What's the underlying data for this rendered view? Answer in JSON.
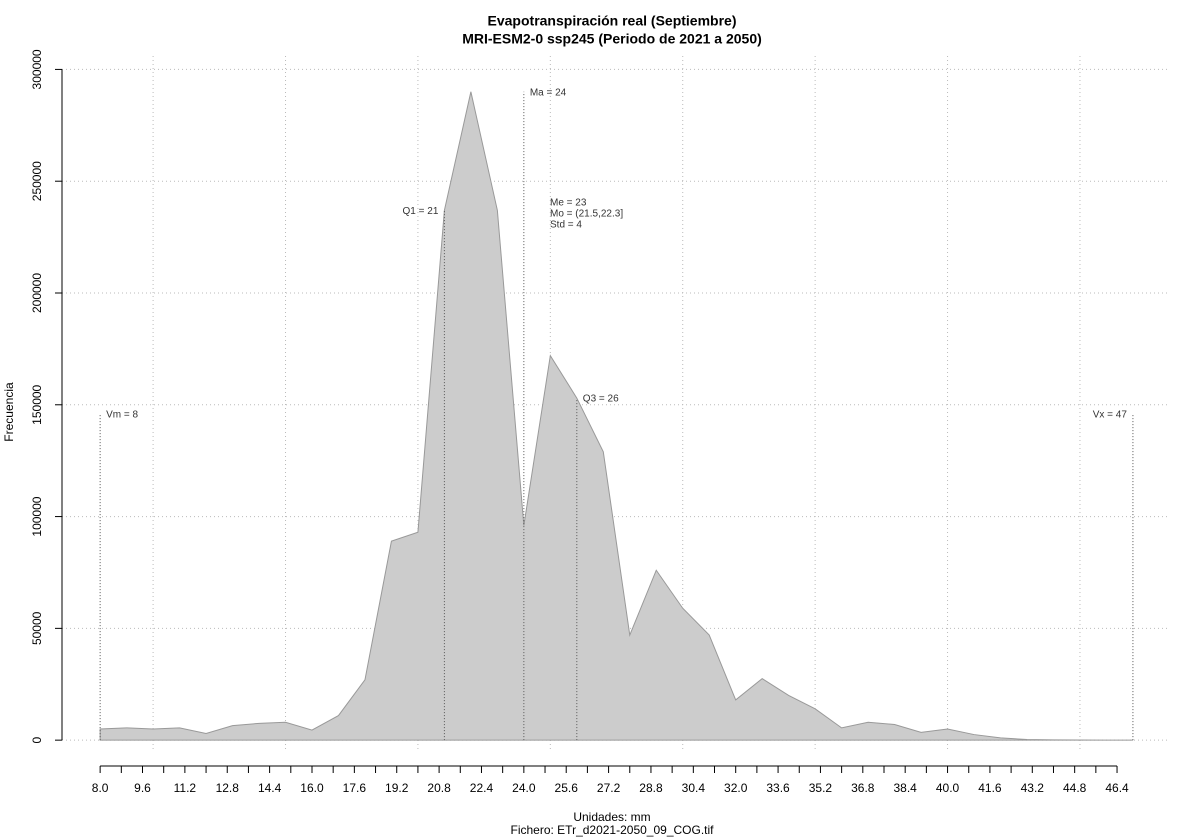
{
  "chart_data": {
    "type": "area",
    "title": "Evapotranspiración real (Septiembre)",
    "subtitle": "MRI-ESM2-0 ssp245 (Periodo de 2021 a 2050)",
    "x_label": "Unidades: mm",
    "caption": "Fichero: ETr_d2021-2050_09_COG.tif",
    "y_label": "Frecuencia",
    "x": [
      8,
      9,
      10,
      11,
      12,
      13,
      14,
      15,
      16,
      17,
      18,
      19,
      20,
      21,
      22,
      23,
      24,
      25,
      26,
      27,
      28,
      29,
      30,
      31,
      32,
      33,
      34,
      35,
      36,
      37,
      38,
      39,
      40,
      41,
      42,
      43,
      44,
      45,
      46,
      47
    ],
    "values": [
      5000,
      5500,
      5000,
      5500,
      3000,
      6500,
      7500,
      8000,
      4500,
      11000,
      27000,
      89000,
      93000,
      237000,
      290000,
      237000,
      96000,
      172000,
      153000,
      129000,
      47000,
      76000,
      59000,
      47000,
      18000,
      27500,
      20000,
      14000,
      5500,
      8000,
      7000,
      3500,
      5000,
      2500,
      1000,
      300,
      100,
      50,
      20,
      0
    ],
    "color": "#cccccc",
    "line_color": "#999999",
    "xlim": [
      6.56,
      48.4
    ],
    "ylim": [
      -5300,
      306000
    ],
    "xticks": [
      {
        "value": 8,
        "label": "8.0"
      },
      9.6,
      11.2,
      12.8,
      14.4,
      {
        "value": 16,
        "label": "16.0"
      },
      17.6,
      19.2,
      20.8,
      22.4,
      {
        "value": 24,
        "label": "24.0"
      },
      25.6,
      27.2,
      28.8,
      30.4,
      {
        "value": 32,
        "label": "32.0"
      },
      33.6,
      35.2,
      36.8,
      38.4,
      {
        "value": 40,
        "label": "40.0"
      },
      41.6,
      43.2,
      44.8,
      46.4
    ],
    "xminorticks": [
      8.8,
      10.4,
      12,
      13.6,
      15.2,
      16.8,
      18.4,
      20,
      21.6,
      23.2,
      24.8,
      26.4,
      28,
      29.6,
      31.2,
      32.8,
      34.4,
      36,
      37.6,
      39.2,
      40.8,
      42.4,
      44,
      45.6
    ],
    "xgrid": [
      10,
      15,
      20,
      25,
      30,
      35,
      40,
      45
    ],
    "yticks": [
      0,
      50000,
      100000,
      150000,
      200000,
      250000,
      300000
    ],
    "grid": true,
    "annotations": [
      {
        "label": "Vm = 8",
        "x": 8,
        "y": 146000,
        "side": "right"
      },
      {
        "label": "Q1 = 21",
        "x": 21,
        "y": 237000,
        "side": "left"
      },
      {
        "label": "Ma = 24",
        "x": 24,
        "y": 290000,
        "side": "right"
      },
      {
        "label": "Q3 = 26",
        "x": 26,
        "y": 153000,
        "side": "right"
      },
      {
        "label": "Vx = 47",
        "x": 47,
        "y": 146000,
        "side": "left"
      }
    ],
    "stats": [
      "Me = 23",
      "Mo = (21.5,22.3]",
      "Std = 4"
    ]
  }
}
